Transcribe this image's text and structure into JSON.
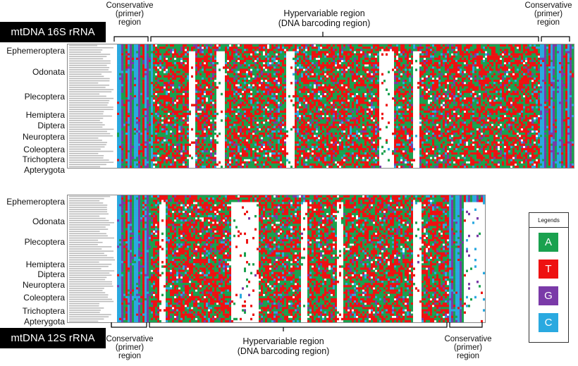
{
  "panel_16s": {
    "title": "mtDNA 16S rRNA",
    "left_region": "Conservative\n(primer)\nregion",
    "middle_region": "Hypervariable region\n(DNA barcoding region)",
    "right_region": "Conservative\n(primer)\nregion",
    "orders": [
      "Ephemeroptera",
      "Odonata",
      "Plecoptera",
      "Hemiptera",
      "Diptera",
      "Neuroptera",
      "Coleoptera",
      "Trichoptera",
      "Apterygota"
    ]
  },
  "panel_12s": {
    "title": "mtDNA 12S rRNA",
    "left_region": "Conservative\n(primer)\nregion",
    "middle_region": "Hypervariable region\n(DNA barcoding region)",
    "right_region": "Conservative\n(primer)\nregion",
    "orders": [
      "Ephemeroptera",
      "Odonata",
      "Plecoptera",
      "Hemiptera",
      "Diptera",
      "Neuroptera",
      "Coleoptera",
      "Trichoptera",
      "Apterygota"
    ]
  },
  "legend": {
    "title": "Legends",
    "items": [
      {
        "base": "A",
        "color": "#1aa14f"
      },
      {
        "base": "T",
        "color": "#ee1111"
      },
      {
        "base": "G",
        "color": "#7a3aa8"
      },
      {
        "base": "C",
        "color": "#2aa9e0"
      }
    ]
  }
}
